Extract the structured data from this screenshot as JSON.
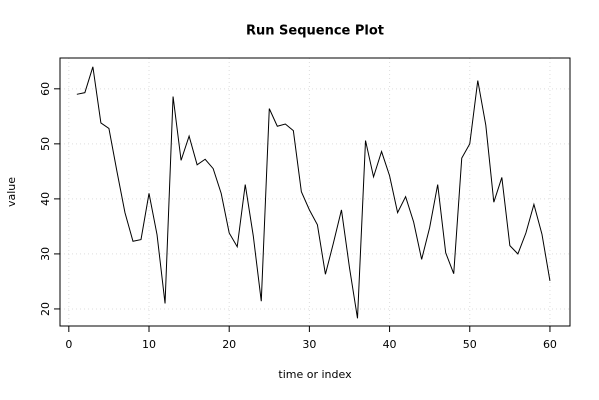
{
  "chart_data": {
    "type": "line",
    "title": "Run Sequence Plot",
    "x_label": "time or index",
    "y_label": "value",
    "x": [
      1,
      2,
      3,
      4,
      5,
      6,
      7,
      8,
      9,
      10,
      11,
      12,
      13,
      14,
      15,
      16,
      17,
      18,
      19,
      20,
      21,
      22,
      23,
      24,
      25,
      26,
      27,
      28,
      29,
      30,
      31,
      32,
      33,
      34,
      35,
      36,
      37,
      38,
      39,
      40,
      41,
      42,
      43,
      44,
      45,
      46,
      47,
      48,
      49,
      50,
      51,
      52,
      53,
      54,
      55,
      56,
      57,
      58,
      59,
      60
    ],
    "series": [
      {
        "color": "#000000",
        "values": [
          59,
          59.3,
          64,
          53.8,
          52.8,
          45,
          37.5,
          32.3,
          32.6,
          41,
          33.5,
          21,
          58.6,
          47,
          51.4,
          46.2,
          47.2,
          45.5,
          41,
          33.8,
          31.3,
          42.6,
          33.3,
          21.4,
          56.4,
          53.2,
          53.6,
          52.4,
          41.3,
          38,
          35.3,
          26.3,
          32,
          38,
          27.5,
          18.3,
          50.6,
          44,
          48.6,
          44.2,
          37.5,
          40.4,
          35.8,
          29,
          34.8,
          42.6,
          30.2,
          26.4,
          47.4,
          50,
          61.5,
          53.4,
          39.4,
          43.9,
          31.5,
          30,
          33.8,
          39,
          33.6,
          25.1
        ]
      }
    ],
    "xlim": [
      -1.1,
      62.5
    ],
    "ylim": [
      16.9,
      65.6
    ],
    "xticks": [
      0,
      10,
      20,
      30,
      40,
      50,
      60
    ],
    "yticks": [
      20,
      30,
      40,
      50,
      60
    ],
    "grid": true
  }
}
